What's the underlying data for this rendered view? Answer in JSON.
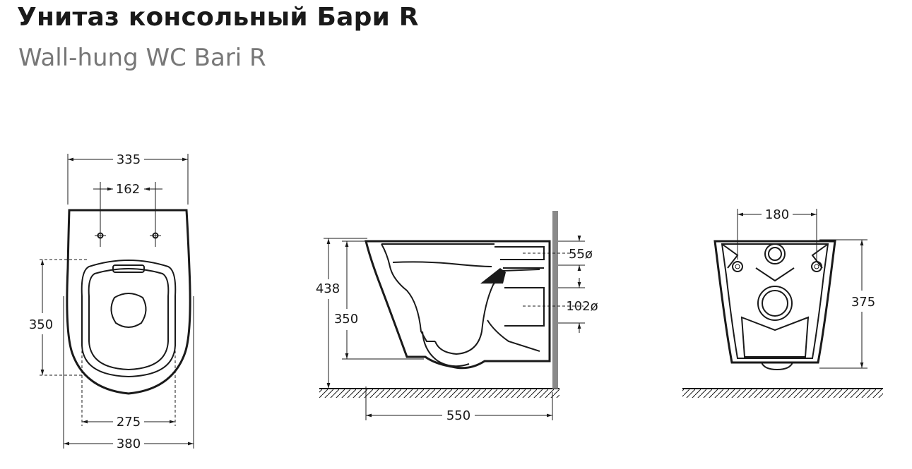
{
  "title": "Унитаз консольный Бари R",
  "subtitle": "Wall-hung WC Bari R",
  "top_view": {
    "overall_width": "335",
    "bolt_spacing": "162",
    "seat_length": "350",
    "seat_width": "275",
    "base_width": "380"
  },
  "side_view": {
    "height": "438",
    "seat_height": "350",
    "inlet": "55ø",
    "outlet": "102ø",
    "projection": "550"
  },
  "rear_view": {
    "hole_spacing": "180",
    "fixing_height": "375"
  }
}
